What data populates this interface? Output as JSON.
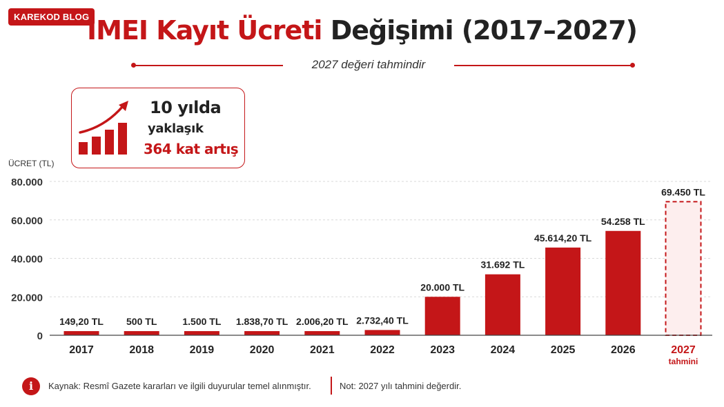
{
  "brand": {
    "badge": "KAREKOD BLOG"
  },
  "title": {
    "part1": "IMEI Kayıt Ücreti",
    "part2": "Değişimi (2017–2027)"
  },
  "subtitle": "2027 değeri tahmindir",
  "callout": {
    "line1": "10 yılda",
    "line2": "yaklaşık",
    "line3": "364 kat artış"
  },
  "colors": {
    "accent": "#c41618",
    "estimate_fill": "#fdeeee",
    "text": "#222222"
  },
  "chart_data": {
    "type": "bar",
    "title": "IMEI Kayıt Ücreti Değişimi (2017–2027)",
    "ylabel": "ÜCRET (TL)",
    "ylim": [
      0,
      80000
    ],
    "yticks": [
      0,
      20000,
      40000,
      60000,
      80000
    ],
    "ytick_labels": [
      "0",
      "20.000",
      "40.000",
      "60.000",
      "80.000"
    ],
    "grid": true,
    "categories": [
      "2017",
      "2018",
      "2019",
      "2020",
      "2021",
      "2022",
      "2023",
      "2024",
      "2025",
      "2026",
      "2027"
    ],
    "values": [
      149.2,
      500,
      1500,
      1838.7,
      2006.2,
      2732.4,
      20000,
      31692,
      45614.2,
      54258,
      69450
    ],
    "value_labels": [
      "149,20 TL",
      "500 TL",
      "1.500 TL",
      "1.838,70 TL",
      "2.006,20 TL",
      "2.732,40 TL",
      "20.000 TL",
      "31.692 TL",
      "45.614,20 TL",
      "54.258 TL",
      "69.450 TL"
    ],
    "estimated": [
      false,
      false,
      false,
      false,
      false,
      false,
      false,
      false,
      false,
      false,
      true
    ],
    "estimate_caption": "tahmini"
  },
  "footer": {
    "info_icon": "info-circle-icon",
    "source": "Kaynak: Resmî Gazete kararları ve ilgili duyurular temel alınmıştır.",
    "note": "Not: 2027 yılı tahmini değerdir."
  }
}
